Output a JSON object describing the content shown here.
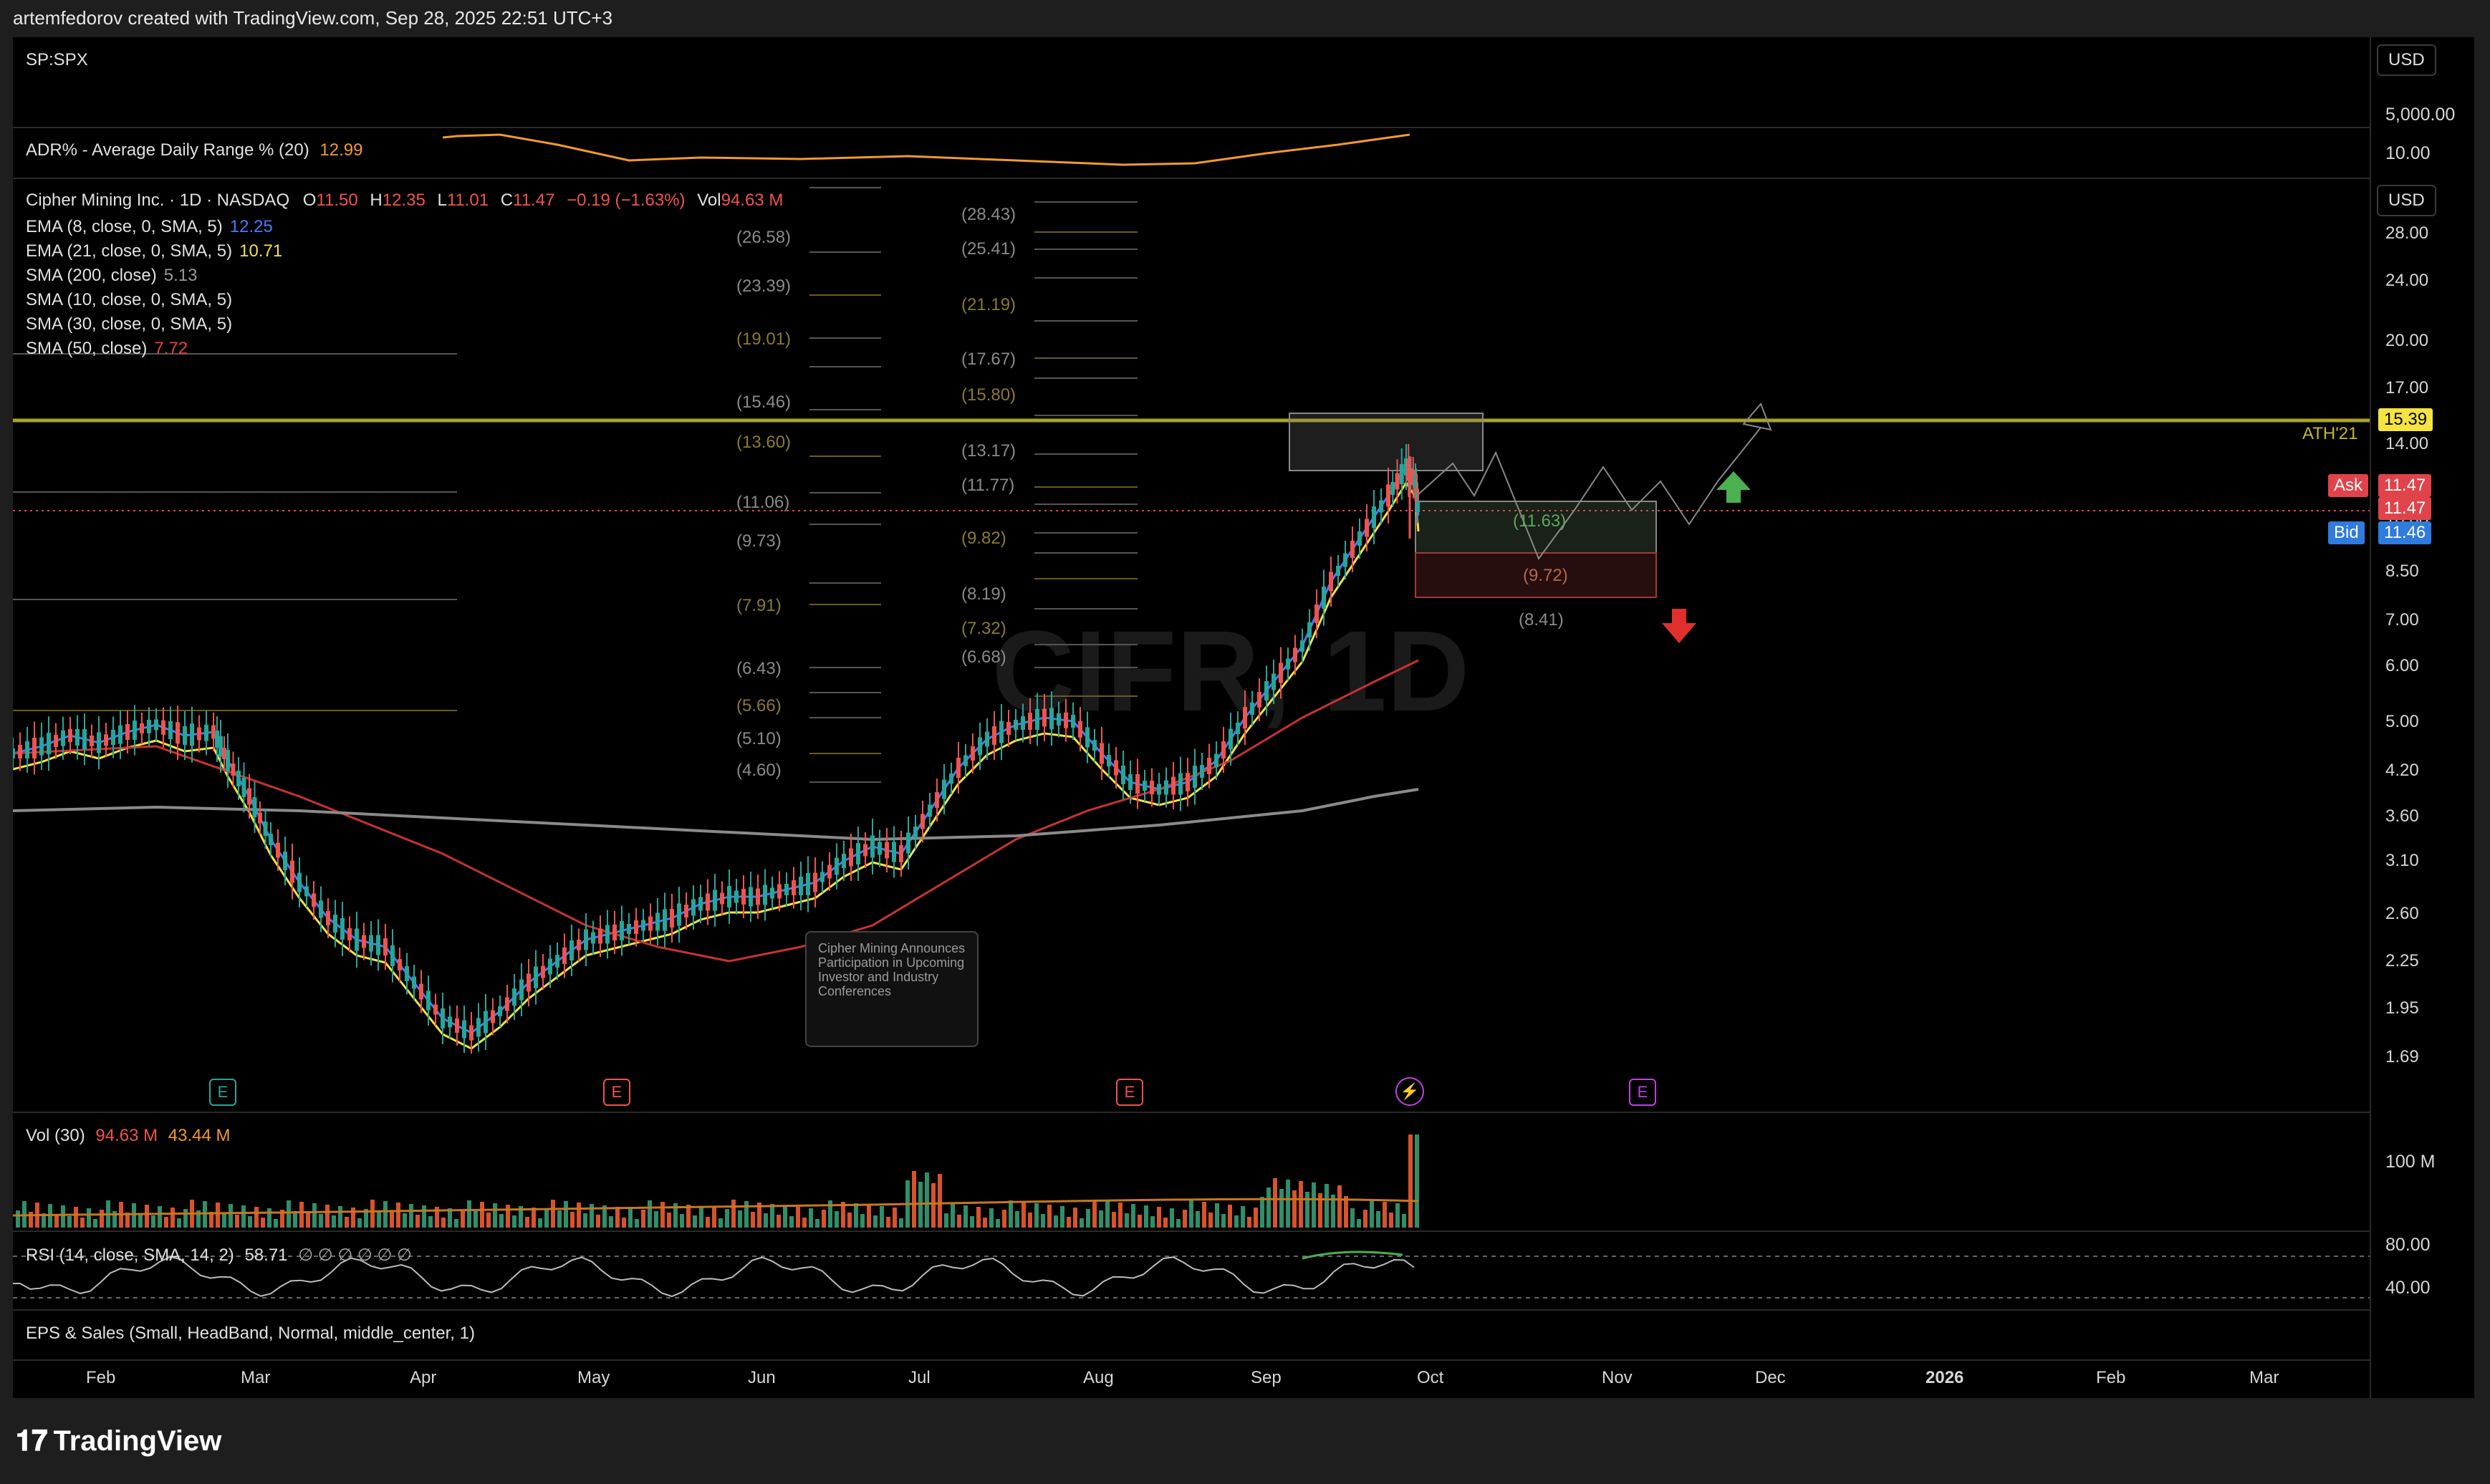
{
  "header": {
    "credit": "artemfedorov created with TradingView.com, Sep 28, 2025 22:51 UTC+3"
  },
  "symbol": {
    "compare": "SP:SPX"
  },
  "adr": {
    "label": "ADR% - Average Daily Range % (20)",
    "value": "12.99",
    "scale_top": "5,000.00",
    "scale_bottom": "10.00",
    "currency": "USD"
  },
  "main": {
    "currency": "USD",
    "legend": {
      "title": "Cipher Mining Inc. · 1D · NASDAQ",
      "o_label": "O",
      "o": "11.50",
      "h_label": "H",
      "h": "12.35",
      "l_label": "L",
      "l": "11.01",
      "c_label": "C",
      "c": "11.47",
      "change": "−0.19 (−1.63%)",
      "vol_label": "Vol",
      "vol": "94.63 M"
    },
    "indicators": [
      {
        "label": "EMA (8, close, 0, SMA, 5)",
        "value": "12.25",
        "color": "#4a7bf5"
      },
      {
        "label": "EMA (21, close, 0, SMA, 5)",
        "value": "10.71",
        "color": "#f5e342"
      },
      {
        "label": "SMA (200, close)",
        "value": "5.13",
        "color": "#9a9a9a"
      },
      {
        "label": "SMA (10, close, 0, SMA, 5)",
        "value": "",
        "color": "#9a9a9a"
      },
      {
        "label": "SMA (30, close, 0, SMA, 5)",
        "value": "",
        "color": "#9a9a9a"
      },
      {
        "label": "SMA (50, close)",
        "value": "7.72",
        "color": "#e04848"
      }
    ],
    "price_scale": [
      "28.00",
      "24.00",
      "20.00",
      "17.00",
      "14.00",
      "10.00",
      "8.50",
      "7.00",
      "6.00",
      "5.00",
      "4.20",
      "3.60",
      "3.10",
      "2.60",
      "2.25",
      "1.95",
      "1.69"
    ],
    "ath_label": "ATH'21",
    "ath_price": "15.39",
    "ask_label": "Ask",
    "ask": "11.47",
    "last": "11.47",
    "bid_label": "Bid",
    "bid": "11.46",
    "fib_left": [
      "(26.58)",
      "(23.39)",
      "(19.01)",
      "(15.46)",
      "(13.60)",
      "(11.06)",
      "(9.73)",
      "(7.91)",
      "(6.43)",
      "(5.66)",
      "(5.10)",
      "(4.60)"
    ],
    "fib_mid": [
      "(28.43)",
      "(25.41)",
      "(21.19)",
      "(17.67)",
      "(15.80)",
      "(13.17)",
      "(11.77)",
      "(9.82)",
      "(8.19)",
      "(7.32)",
      "(6.68)"
    ],
    "targets": [
      "(11.63)",
      "(9.72)",
      "(8.41)"
    ],
    "watermark": "CIFR, 1D",
    "news_callout": "Cipher Mining Announces Participation in Upcoming Investor and Industry Conferences",
    "event_badges": [
      "E",
      "E",
      "E",
      "⚡",
      "E"
    ],
    "colors": {
      "ath_line": "#a9a326",
      "ask": "#e0444a",
      "bid": "#2f7bde",
      "up_arrow": "#4caf50",
      "down_arrow": "#e0302e",
      "ema8": "#4a7bf5",
      "ema21": "#f5e342",
      "sma50": "#c83232",
      "sma200": "#8a8a8a",
      "up_candle": "#26a69a",
      "down_candle": "#ef5350"
    }
  },
  "volume": {
    "label": "Vol (30)",
    "v1": "94.63 M",
    "v2": "43.44 M",
    "scale": "100 M"
  },
  "rsi": {
    "label": "RSI (14, close, SMA, 14, 2)",
    "value": "58.71",
    "extra": "∅ ∅ ∅ ∅ ∅ ∅",
    "upper": "80.00",
    "lower": "40.00"
  },
  "eps": {
    "label": "EPS & Sales (Small, HeadBand, Normal, middle_center, 1)"
  },
  "time_axis": [
    "Feb",
    "Mar",
    "Apr",
    "May",
    "Jun",
    "Jul",
    "Aug",
    "Sep",
    "Oct",
    "Nov",
    "Dec",
    "2026",
    "Feb",
    "Mar"
  ],
  "brand": "TradingView"
}
